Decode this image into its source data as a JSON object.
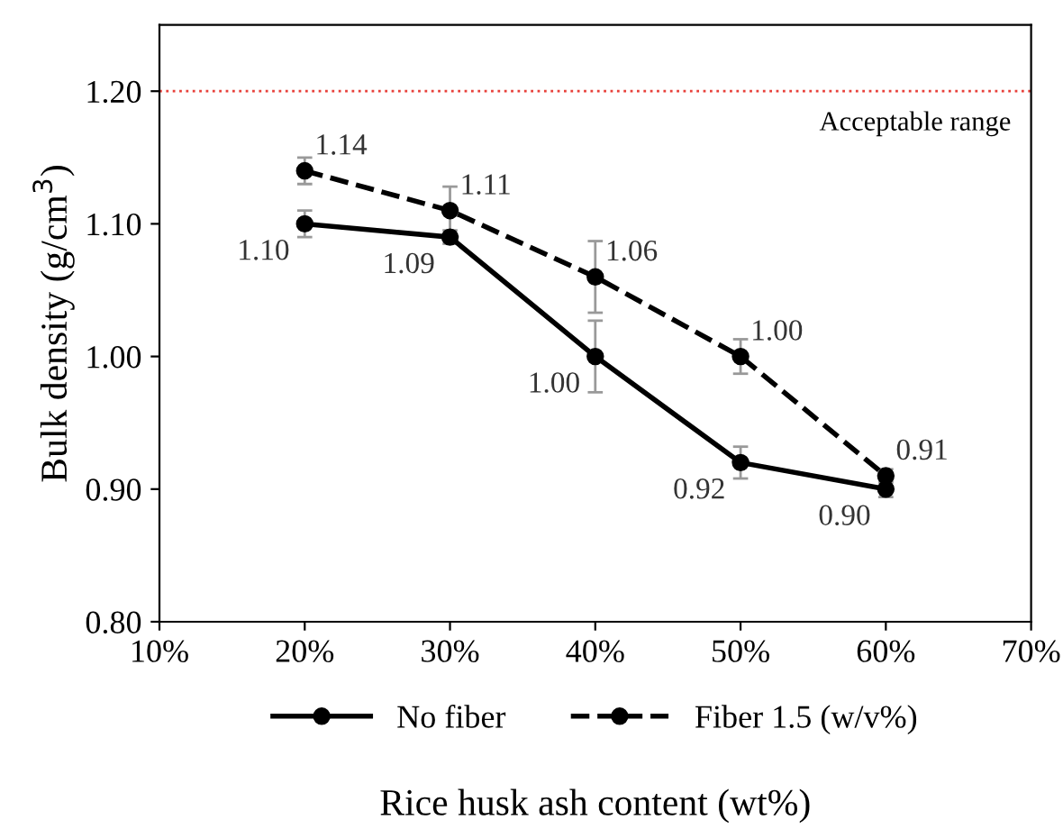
{
  "chart_data": {
    "type": "line",
    "xlabel": "Rice husk ash content (wt%)",
    "ylabel": "Bulk density (g/cm$^{3}$)",
    "x": [
      20,
      30,
      40,
      50,
      60
    ],
    "series": [
      {
        "name": "No fiber",
        "color": "#000000",
        "line_style": "solid",
        "values": [
          1.1,
          1.09,
          1.0,
          0.92,
          0.9
        ],
        "value_labels": [
          "1.10",
          "1.09",
          "1.00",
          "0.92",
          "0.90"
        ],
        "errors": [
          0.01,
          0.005,
          0.027,
          0.012,
          0.006
        ]
      },
      {
        "name": "Fiber 1.5 (w/v%)",
        "color": "#000000",
        "line_style": "dashed",
        "values": [
          1.14,
          1.11,
          1.06,
          1.0,
          0.91
        ],
        "value_labels": [
          "1.14",
          "1.11",
          "1.06",
          "1.00",
          "0.91"
        ],
        "errors": [
          0.01,
          0.018,
          0.027,
          0.013,
          0.005
        ]
      }
    ],
    "xlim": [
      10,
      70
    ],
    "xticks": [
      {
        "value": 10,
        "label": "10%"
      },
      {
        "value": 20,
        "label": "20%"
      },
      {
        "value": 30,
        "label": "30%"
      },
      {
        "value": 40,
        "label": "40%"
      },
      {
        "value": 50,
        "label": "50%"
      },
      {
        "value": 60,
        "label": "60%"
      },
      {
        "value": 70,
        "label": "70%"
      }
    ],
    "ylim": [
      0.8,
      1.25
    ],
    "yticks": [
      {
        "value": 0.8,
        "label": "0.80"
      },
      {
        "value": 0.9,
        "label": "0.90"
      },
      {
        "value": 1.0,
        "label": "1.00"
      },
      {
        "value": 1.1,
        "label": "1.10"
      },
      {
        "value": 1.2,
        "label": "1.20"
      }
    ],
    "ref_lines": [
      {
        "axis": "y",
        "value": 1.2,
        "label": "Acceptable range",
        "color": "#e8403a",
        "line_style": "dotted"
      }
    ],
    "marker": "circle",
    "grid": false,
    "legend": "bottom"
  }
}
